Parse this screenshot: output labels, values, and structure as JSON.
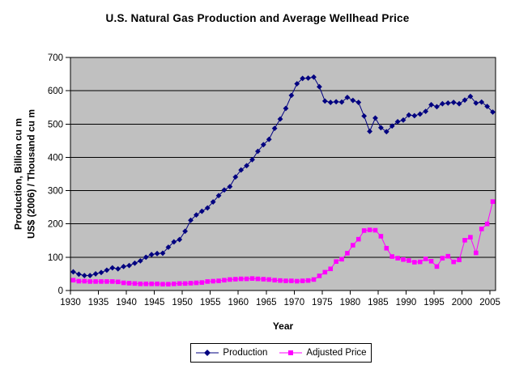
{
  "chart_data": {
    "type": "line",
    "title": "U.S. Natural Gas Production and Average Wellhead Price",
    "xlabel": "Year",
    "ylabel_lines": [
      "Production, Billion cu m",
      "US$ (2006) / Thousand cu m"
    ],
    "ylim": [
      0,
      700
    ],
    "yticks": [
      0,
      100,
      200,
      300,
      400,
      500,
      600,
      700
    ],
    "xticks": [
      1930,
      1935,
      1940,
      1945,
      1950,
      1955,
      1960,
      1965,
      1970,
      1975,
      1980,
      1985,
      1990,
      1995,
      2000,
      2005
    ],
    "grid": true,
    "plot_bg": "#c0c0c0",
    "grid_color": "#000000",
    "legend_position": "bottom",
    "x": [
      1930,
      1931,
      1932,
      1933,
      1934,
      1935,
      1936,
      1937,
      1938,
      1939,
      1940,
      1941,
      1942,
      1943,
      1944,
      1945,
      1946,
      1947,
      1948,
      1949,
      1950,
      1951,
      1952,
      1953,
      1954,
      1955,
      1956,
      1957,
      1958,
      1959,
      1960,
      1961,
      1962,
      1963,
      1964,
      1965,
      1966,
      1967,
      1968,
      1969,
      1970,
      1971,
      1972,
      1973,
      1974,
      1975,
      1976,
      1977,
      1978,
      1979,
      1980,
      1981,
      1982,
      1983,
      1984,
      1985,
      1986,
      1987,
      1988,
      1989,
      1990,
      1991,
      1992,
      1993,
      1994,
      1995,
      1996,
      1997,
      1998,
      1999,
      2000,
      2001,
      2002,
      2003,
      2004,
      2005
    ],
    "series": [
      {
        "name": "Production",
        "color": "#000080",
        "marker": "diamond",
        "values": [
          56,
          49,
          45,
          45,
          50,
          54,
          61,
          68,
          65,
          72,
          75,
          82,
          89,
          100,
          108,
          111,
          112,
          130,
          146,
          153,
          178,
          211,
          227,
          238,
          248,
          266,
          285,
          302,
          312,
          341,
          362,
          375,
          393,
          418,
          438,
          454,
          487,
          515,
          547,
          586,
          621,
          637,
          638,
          641,
          612,
          569,
          565,
          567,
          566,
          580,
          571,
          565,
          524,
          478,
          518,
          489,
          477,
          494,
          507,
          512,
          527,
          525,
          530,
          538,
          558,
          552,
          561,
          563,
          565,
          561,
          572,
          583,
          563,
          566,
          553,
          536
        ]
      },
      {
        "name": "Adjusted Price",
        "color": "#ff00ff",
        "marker": "square",
        "values": [
          31,
          28,
          28,
          27,
          27,
          27,
          27,
          27,
          26,
          23,
          22,
          21,
          20,
          20,
          20,
          20,
          19,
          19,
          20,
          21,
          21,
          22,
          23,
          24,
          27,
          28,
          29,
          31,
          33,
          34,
          35,
          35,
          36,
          35,
          34,
          33,
          31,
          30,
          29,
          29,
          28,
          29,
          30,
          33,
          44,
          55,
          65,
          87,
          94,
          112,
          136,
          154,
          180,
          182,
          181,
          163,
          127,
          102,
          97,
          93,
          90,
          85,
          86,
          95,
          88,
          72,
          97,
          103,
          86,
          92,
          151,
          160,
          113,
          185,
          200,
          267
        ]
      }
    ]
  }
}
